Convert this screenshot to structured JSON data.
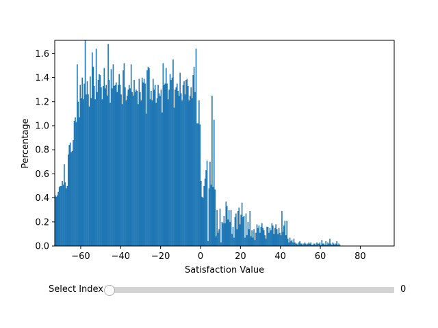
{
  "chart_data": {
    "type": "bar",
    "xlabel": "Satisfaction Value",
    "ylabel": "Percentage",
    "xlim": [
      -73,
      97
    ],
    "ylim": [
      0,
      1.71
    ],
    "xticks": [
      "-60",
      "-40",
      "-20",
      "0",
      "20",
      "40",
      "60",
      "80"
    ],
    "yticks": [
      "0.0",
      "0.2",
      "0.4",
      "0.6",
      "0.8",
      "1.0",
      "1.2",
      "1.4",
      "1.6"
    ],
    "bin_start": -73,
    "bin_width": 1,
    "values": [
      0.42,
      0.41,
      0.42,
      0.45,
      0.49,
      0.5,
      0.5,
      0.54,
      0.51,
      0.68,
      0.53,
      0.48,
      0.5,
      0.76,
      0.84,
      0.86,
      0.78,
      0.79,
      0.88,
      1.04,
      1.07,
      1.03,
      1.51,
      1.2,
      1.07,
      1.34,
      1.23,
      1.4,
      1.22,
      1.35,
      1.71,
      1.26,
      1.37,
      1.26,
      1.16,
      1.41,
      1.23,
      1.61,
      1.49,
      1.33,
      1.22,
      1.64,
      1.28,
      1.38,
      1.43,
      1.42,
      1.32,
      1.22,
      1.33,
      1.48,
      1.31,
      1.34,
      1.25,
      1.68,
      1.38,
      1.19,
      1.47,
      1.31,
      1.51,
      1.33,
      1.34,
      1.36,
      1.28,
      1.34,
      1.43,
      1.34,
      1.26,
      1.18,
      1.46,
      1.52,
      1.32,
      1.21,
      1.25,
      1.3,
      1.34,
      1.31,
      1.51,
      1.28,
      1.25,
      1.38,
      1.28,
      1.3,
      1.29,
      1.18,
      1.39,
      1.28,
      1.21,
      1.4,
      1.36,
      1.39,
      1.35,
      1.1,
      1.46,
      1.49,
      1.48,
      1.22,
      1.29,
      1.21,
      1.39,
      1.3,
      1.34,
      1.19,
      1.23,
      1.34,
      1.27,
      1.25,
      1.3,
      1.11,
      1.52,
      1.34,
      1.35,
      1.48,
      1.35,
      1.22,
      1.3,
      1.43,
      1.38,
      1.4,
      1.55,
      1.15,
      1.3,
      1.32,
      1.35,
      1.29,
      1.25,
      1.44,
      1.27,
      1.21,
      1.34,
      1.37,
      1.26,
      1.38,
      1.39,
      1.33,
      1.21,
      1.25,
      1.32,
      1.23,
      1.42,
      1.49,
      1.28,
      1.64,
      1.02,
      1.02,
      1.21,
      1.01,
      0.54,
      0.41,
      0.4,
      0.5,
      0.56,
      0.63,
      0.71,
      0.04,
      0.48,
      0.7,
      0.51,
      1.25,
      0.49,
      1.05,
      0.47,
      0.08,
      0.3,
      0.11,
      0.14,
      0.31,
      0.03,
      0.2,
      0.19,
      0.25,
      0.19,
      0.37,
      0.33,
      0.22,
      0.3,
      0.2,
      0.3,
      0.1,
      0.16,
      0.07,
      0.24,
      0.27,
      0.14,
      0.29,
      0.32,
      0.18,
      0.26,
      0.36,
      0.24,
      0.25,
      0.07,
      0.27,
      0.09,
      0.2,
      0.14,
      0.29,
      0.08,
      0.13,
      0.07,
      0.14,
      0.05,
      0.11,
      0.18,
      0.15,
      0.17,
      0.11,
      0.16,
      0.19,
      0.15,
      0.13,
      0.09,
      0.06,
      0.16,
      0.16,
      0.11,
      0.15,
      0.13,
      0.19,
      0.17,
      0.1,
      0.15,
      0.18,
      0.14,
      0.1,
      0.15,
      0.11,
      0.09,
      0.29,
      0.12,
      0.17,
      0.21,
      0.09,
      0.21,
      0.06,
      0.03,
      0.07,
      0.04,
      0.05,
      0.03,
      0.06,
      0.03,
      0.02,
      0.02,
      0.01,
      0.03,
      0.04,
      0.02,
      0.02,
      0.01,
      0.02,
      0.03,
      0.02,
      0.01,
      0.02,
      0.03,
      0.02,
      0.03,
      0.01,
      0.01,
      0.02,
      0.02,
      0.01,
      0.03,
      0.02,
      0.02,
      0.03,
      0.01,
      0.05,
      0.02,
      0.02,
      0.01,
      0.04,
      0.01,
      0.03,
      0.02,
      0.06,
      0.02,
      0.01,
      0.03,
      0.02,
      0.01,
      0.02,
      0.04,
      0.01,
      0.02,
      0.01
    ]
  },
  "slider": {
    "label": "Select Index",
    "value": "0",
    "fraction": 0
  }
}
